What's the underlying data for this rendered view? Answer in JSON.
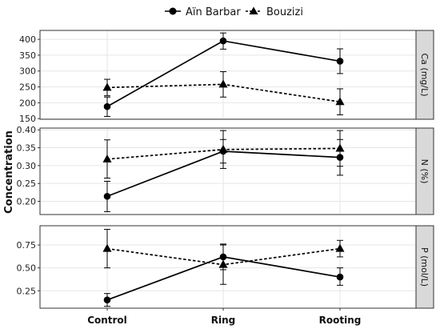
{
  "legend": {
    "items": [
      {
        "label": "Aïn Barbar",
        "marker": "circle",
        "line": "solid"
      },
      {
        "label": "Bouzizi",
        "marker": "triangle",
        "line": "dashed"
      }
    ],
    "position": "top-center"
  },
  "y_axis_title": "Concentration",
  "colors": {
    "series": "#000000",
    "grid": "#e6e6e6",
    "strip_bg": "#d9d9d9",
    "panel_border": "#333333"
  },
  "chart_data": [
    {
      "type": "line",
      "strip_label": "Ca (mg/L)",
      "categories": [
        "Control",
        "Ring",
        "Rooting"
      ],
      "ylim": [
        148,
        428
      ],
      "yticks": [
        150,
        200,
        250,
        300,
        350,
        400
      ],
      "grid": true,
      "series": [
        {
          "name": "Aïn Barbar",
          "marker": "circle",
          "values": [
            188,
            395,
            331
          ],
          "err_low": [
            157,
            369,
            292
          ],
          "err_high": [
            218,
            420,
            370
          ]
        },
        {
          "name": "Bouzizi",
          "marker": "triangle",
          "values": [
            248,
            258,
            203
          ],
          "err_low": [
            222,
            218,
            162
          ],
          "err_high": [
            274,
            298,
            244
          ]
        }
      ]
    },
    {
      "type": "line",
      "strip_label": "N (%)",
      "categories": [
        "Control",
        "Ring",
        "Rooting"
      ],
      "ylim": [
        0.163,
        0.405
      ],
      "yticks": [
        0.2,
        0.25,
        0.3,
        0.35,
        0.4
      ],
      "ytick_labels": [
        "0.20",
        "0.25",
        "0.30",
        "0.35",
        "0.40"
      ],
      "grid": true,
      "series": [
        {
          "name": "Aïn Barbar",
          "marker": "circle",
          "values": [
            0.214,
            0.34,
            0.323
          ],
          "err_low": [
            0.171,
            0.307,
            0.273
          ],
          "err_high": [
            0.256,
            0.373,
            0.373
          ]
        },
        {
          "name": "Bouzizi",
          "marker": "triangle",
          "values": [
            0.318,
            0.345,
            0.348
          ],
          "err_low": [
            0.265,
            0.292,
            0.298
          ],
          "err_high": [
            0.372,
            0.398,
            0.398
          ]
        }
      ]
    },
    {
      "type": "line",
      "strip_label": "P (mol/L)",
      "categories": [
        "Control",
        "Ring",
        "Rooting"
      ],
      "ylim": [
        0.06,
        0.96
      ],
      "yticks": [
        0.25,
        0.5,
        0.75
      ],
      "ytick_labels": [
        "0.25",
        "0.50",
        "0.75"
      ],
      "grid": true,
      "series": [
        {
          "name": "Aïn Barbar",
          "marker": "circle",
          "values": [
            0.15,
            0.62,
            0.4
          ],
          "err_low": [
            0.08,
            0.48,
            0.31
          ],
          "err_high": [
            0.22,
            0.76,
            0.5
          ]
        },
        {
          "name": "Bouzizi",
          "marker": "triangle",
          "values": [
            0.71,
            0.535,
            0.71
          ],
          "err_low": [
            0.5,
            0.32,
            0.62
          ],
          "err_high": [
            0.92,
            0.75,
            0.8
          ]
        }
      ]
    }
  ]
}
